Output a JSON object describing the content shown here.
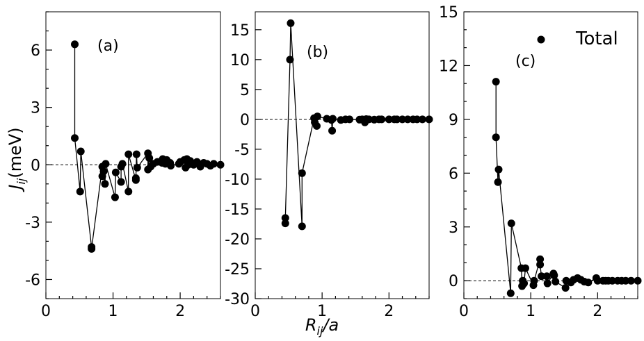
{
  "ylabel": {
    "main": "J",
    "sub": "ij",
    "tail": "(meV)"
  },
  "xlabel": {
    "main": "R",
    "sub": "ij",
    "tail": "/a"
  },
  "legend": {
    "label": "Total",
    "placement": "top-right"
  },
  "colors": {
    "marker": "#000000",
    "line": "#000000",
    "zero_line": "#000000",
    "background": "#ffffff"
  },
  "chart_data": [
    {
      "type": "scatter",
      "panel_label": "(a)",
      "connected": true,
      "zero_reference_line": true,
      "xlim": [
        0,
        2.6
      ],
      "ylim": [
        -7,
        8
      ],
      "xticks": [
        0,
        1,
        2
      ],
      "yticks": [
        -6,
        -3,
        0,
        3,
        6
      ],
      "ytick_labels": [
        "-6",
        "-3",
        "0",
        "3",
        "6"
      ],
      "series": [
        {
          "x": [
            0.43,
            0.43,
            0.51,
            0.52,
            0.68,
            0.68,
            0.84,
            0.84,
            0.86,
            0.88,
            0.89,
            1.03,
            1.04,
            1.12,
            1.12,
            1.14,
            1.23,
            1.23,
            1.34,
            1.34,
            1.35,
            1.36,
            1.52,
            1.52,
            1.54,
            1.56,
            1.6,
            1.66,
            1.73,
            1.74,
            1.78,
            1.8,
            1.85,
            1.86,
            1.98,
            2.0,
            2.06,
            2.08,
            2.1,
            2.12,
            2.15,
            2.2,
            2.25,
            2.3,
            2.35,
            2.4,
            2.45,
            2.5,
            2.6
          ],
          "y": [
            6.3,
            1.4,
            -1.4,
            0.7,
            -4.3,
            -4.4,
            -0.1,
            -0.6,
            -0.35,
            -1.0,
            0.05,
            -1.7,
            -0.4,
            -0.9,
            -0.1,
            0.05,
            -1.4,
            0.55,
            -0.8,
            -0.7,
            0.55,
            -0.15,
            0.6,
            -0.25,
            0.35,
            -0.1,
            0.05,
            0.15,
            0.1,
            0.3,
            0.05,
            0.25,
            0.1,
            -0.05,
            0.05,
            0.15,
            0.25,
            -0.15,
            0.3,
            0.0,
            0.2,
            0.0,
            0.15,
            -0.1,
            0.1,
            0.05,
            -0.05,
            0.05,
            0.0
          ]
        }
      ]
    },
    {
      "type": "scatter",
      "panel_label": "(b)",
      "connected": true,
      "zero_reference_line": true,
      "xlim": [
        0,
        2.6
      ],
      "ylim": [
        -30,
        18
      ],
      "xticks": [
        0,
        1,
        2
      ],
      "yticks": [
        -30,
        -25,
        -20,
        -15,
        -10,
        -5,
        0,
        5,
        10,
        15
      ],
      "ytick_labels": [
        "-30",
        "-25",
        "-20",
        "-15",
        "-10",
        "-5",
        "0",
        "5",
        "10",
        "15"
      ],
      "series": [
        {
          "x": [
            0.45,
            0.45,
            0.52,
            0.53,
            0.7,
            0.7,
            0.88,
            0.89,
            0.92,
            0.93,
            1.07,
            1.14,
            1.15,
            1.16,
            1.28,
            1.35,
            1.41,
            1.56,
            1.6,
            1.64,
            1.66,
            1.7,
            1.78,
            1.85,
            1.89,
            2.0,
            2.08,
            2.12,
            2.2,
            2.28,
            2.36,
            2.42,
            2.5,
            2.6
          ],
          "y": [
            -17.4,
            -16.5,
            10.0,
            16.1,
            -17.9,
            -9.0,
            0.2,
            -0.5,
            -1.1,
            0.5,
            0.1,
            -0.1,
            -1.9,
            0.1,
            -0.1,
            0.0,
            0.0,
            -0.05,
            0.0,
            -0.5,
            0.05,
            0.0,
            -0.05,
            0.0,
            0.0,
            0.0,
            0.0,
            0.0,
            0.0,
            0.0,
            0.0,
            0.0,
            0.0,
            0.0
          ]
        }
      ]
    },
    {
      "type": "scatter",
      "panel_label": "(c)",
      "connected": true,
      "zero_reference_line": true,
      "xlim": [
        0,
        2.6
      ],
      "ylim": [
        -1,
        15
      ],
      "xticks": [
        0,
        1,
        2
      ],
      "yticks": [
        0,
        3,
        6,
        9,
        12,
        15
      ],
      "ytick_labels": [
        "0",
        "3",
        "6",
        "9",
        "12",
        "15"
      ],
      "series": [
        {
          "name": "Total",
          "x": [
            0.48,
            0.48,
            0.51,
            0.52,
            0.7,
            0.71,
            0.86,
            0.87,
            0.88,
            0.9,
            0.92,
            1.04,
            1.05,
            1.14,
            1.14,
            1.16,
            1.24,
            1.25,
            1.34,
            1.35,
            1.37,
            1.52,
            1.53,
            1.6,
            1.64,
            1.7,
            1.75,
            1.8,
            1.86,
            1.98,
            2.0,
            2.08,
            2.12,
            2.16,
            2.22,
            2.3,
            2.36,
            2.42,
            2.5,
            2.6
          ],
          "y": [
            11.1,
            8.0,
            5.5,
            6.2,
            -0.7,
            3.2,
            0.7,
            -0.3,
            0.0,
            -0.15,
            0.7,
            -0.25,
            0.0,
            1.2,
            0.9,
            0.25,
            0.25,
            -0.15,
            0.4,
            0.3,
            -0.05,
            -0.4,
            0.0,
            -0.1,
            0.05,
            0.15,
            0.05,
            -0.05,
            -0.1,
            0.15,
            0.0,
            0.0,
            0.0,
            0.0,
            0.0,
            0.0,
            0.0,
            0.0,
            0.0,
            0.0
          ]
        }
      ]
    }
  ]
}
